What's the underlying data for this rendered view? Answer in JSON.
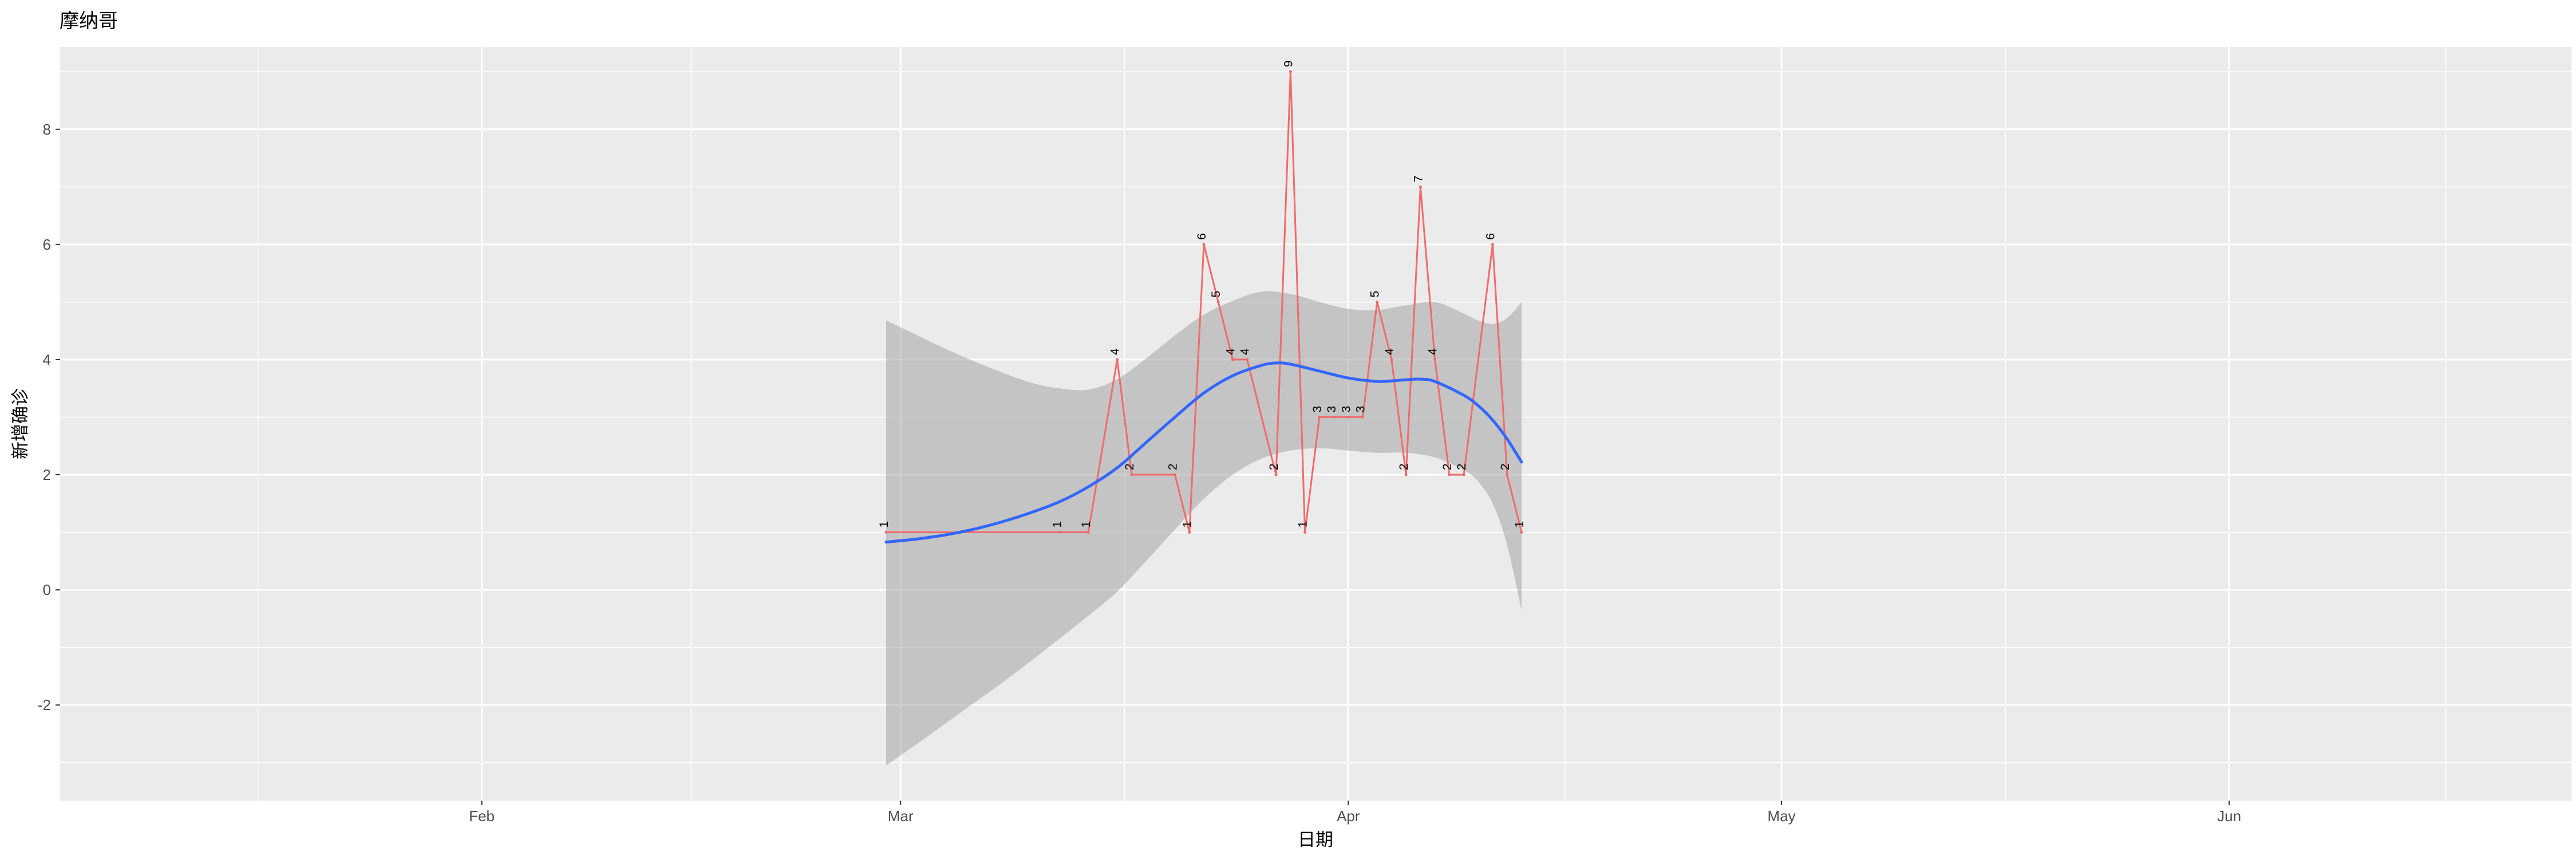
{
  "page": {
    "background": "#FFFFFF"
  },
  "chart_data": {
    "type": "line",
    "title": "摩纳哥",
    "xlabel": "日期",
    "ylabel": "新增确诊",
    "panel_bg": "#EBEBEB",
    "grid_color": "#FFFFFF",
    "tick_color": "#333333",
    "tick_label_color": "#4D4D4D",
    "legend": "none",
    "grid": "on",
    "x_axis": {
      "tick_labels": [
        "Feb",
        "Mar",
        "Apr",
        "May",
        "Jun"
      ],
      "tick_days": [
        -28,
        1,
        32,
        62,
        93
      ],
      "minor_days": [
        -43.5,
        -13.5,
        16.5,
        47,
        77.5,
        108
      ],
      "domain_days": [
        -57.2,
        116.7
      ],
      "day0_date": "2020-02-29"
    },
    "y_axis": {
      "ticks": [
        -2,
        0,
        2,
        4,
        6,
        8
      ],
      "minor": [
        -3,
        -1,
        1,
        3,
        5,
        7,
        9
      ],
      "domain": [
        -3.66,
        9.43
      ]
    },
    "observed": {
      "name": "daily-new-confirmed",
      "color": "#F26A6A",
      "label_color": "#000000",
      "points": [
        {
          "date": "2020-02-29",
          "day": 0,
          "value": 1
        },
        {
          "date": "2020-03-12",
          "day": 12,
          "value": 1
        },
        {
          "date": "2020-03-14",
          "day": 14,
          "value": 1
        },
        {
          "date": "2020-03-16",
          "day": 16,
          "value": 4
        },
        {
          "date": "2020-03-17",
          "day": 17,
          "value": 2
        },
        {
          "date": "2020-03-20",
          "day": 20,
          "value": 2
        },
        {
          "date": "2020-03-21",
          "day": 21,
          "value": 1
        },
        {
          "date": "2020-03-22",
          "day": 22,
          "value": 6
        },
        {
          "date": "2020-03-23",
          "day": 23,
          "value": 5
        },
        {
          "date": "2020-03-24",
          "day": 24,
          "value": 4
        },
        {
          "date": "2020-03-25",
          "day": 25,
          "value": 4
        },
        {
          "date": "2020-03-27",
          "day": 27,
          "value": 2
        },
        {
          "date": "2020-03-28",
          "day": 28,
          "value": 9
        },
        {
          "date": "2020-03-29",
          "day": 29,
          "value": 1
        },
        {
          "date": "2020-03-30",
          "day": 30,
          "value": 3
        },
        {
          "date": "2020-03-31",
          "day": 31,
          "value": 3
        },
        {
          "date": "2020-04-01",
          "day": 32,
          "value": 3
        },
        {
          "date": "2020-04-02",
          "day": 33,
          "value": 3
        },
        {
          "date": "2020-04-03",
          "day": 34,
          "value": 5
        },
        {
          "date": "2020-04-04",
          "day": 35,
          "value": 4
        },
        {
          "date": "2020-04-05",
          "day": 36,
          "value": 2
        },
        {
          "date": "2020-04-06",
          "day": 37,
          "value": 7
        },
        {
          "date": "2020-04-07",
          "day": 38,
          "value": 4
        },
        {
          "date": "2020-04-08",
          "day": 39,
          "value": 2
        },
        {
          "date": "2020-04-09",
          "day": 40,
          "value": 2
        },
        {
          "date": "2020-04-11",
          "day": 42,
          "value": 6
        },
        {
          "date": "2020-04-12",
          "day": 43,
          "value": 2
        },
        {
          "date": "2020-04-13",
          "day": 44,
          "value": 1
        }
      ]
    },
    "smooth": {
      "name": "loess-smooth",
      "color": "#3366FF",
      "points": [
        [
          0,
          0.83
        ],
        [
          2,
          0.88
        ],
        [
          4,
          0.95
        ],
        [
          6,
          1.05
        ],
        [
          8,
          1.18
        ],
        [
          10,
          1.34
        ],
        [
          12,
          1.53
        ],
        [
          14,
          1.79
        ],
        [
          16,
          2.12
        ],
        [
          18,
          2.56
        ],
        [
          20,
          3.0
        ],
        [
          22,
          3.42
        ],
        [
          24,
          3.72
        ],
        [
          26,
          3.9
        ],
        [
          27,
          3.94
        ],
        [
          28,
          3.92
        ],
        [
          30,
          3.8
        ],
        [
          32,
          3.68
        ],
        [
          34,
          3.62
        ],
        [
          35,
          3.63
        ],
        [
          36,
          3.65
        ],
        [
          37,
          3.66
        ],
        [
          38,
          3.62
        ],
        [
          40,
          3.38
        ],
        [
          41,
          3.2
        ],
        [
          42,
          2.95
        ],
        [
          43,
          2.62
        ],
        [
          44,
          2.22
        ]
      ]
    },
    "ci_band": {
      "name": "confidence-interval",
      "fill": "#9E9E9E",
      "opacity": 0.5,
      "upper": [
        [
          0,
          4.68
        ],
        [
          2,
          4.44
        ],
        [
          4,
          4.2
        ],
        [
          6,
          3.98
        ],
        [
          8,
          3.78
        ],
        [
          10,
          3.6
        ],
        [
          12,
          3.5
        ],
        [
          14,
          3.48
        ],
        [
          16,
          3.66
        ],
        [
          18,
          4.02
        ],
        [
          20,
          4.42
        ],
        [
          22,
          4.78
        ],
        [
          24,
          5.02
        ],
        [
          26,
          5.18
        ],
        [
          28,
          5.14
        ],
        [
          30,
          5.0
        ],
        [
          32,
          4.88
        ],
        [
          34,
          4.86
        ],
        [
          36,
          4.94
        ],
        [
          38,
          5.0
        ],
        [
          40,
          4.8
        ],
        [
          41,
          4.68
        ],
        [
          42,
          4.62
        ],
        [
          43,
          4.72
        ],
        [
          44,
          5.0
        ]
      ],
      "lower": [
        [
          0,
          -3.05
        ],
        [
          2,
          -2.7
        ],
        [
          4,
          -2.34
        ],
        [
          6,
          -1.98
        ],
        [
          8,
          -1.62
        ],
        [
          10,
          -1.24
        ],
        [
          12,
          -0.85
        ],
        [
          14,
          -0.45
        ],
        [
          16,
          -0.03
        ],
        [
          18,
          0.5
        ],
        [
          20,
          1.05
        ],
        [
          22,
          1.58
        ],
        [
          24,
          2.0
        ],
        [
          26,
          2.28
        ],
        [
          28,
          2.42
        ],
        [
          30,
          2.46
        ],
        [
          32,
          2.42
        ],
        [
          34,
          2.38
        ],
        [
          36,
          2.38
        ],
        [
          38,
          2.3
        ],
        [
          40,
          2.08
        ],
        [
          41,
          1.88
        ],
        [
          42,
          1.5
        ],
        [
          43,
          0.78
        ],
        [
          44,
          -0.36
        ]
      ]
    }
  }
}
